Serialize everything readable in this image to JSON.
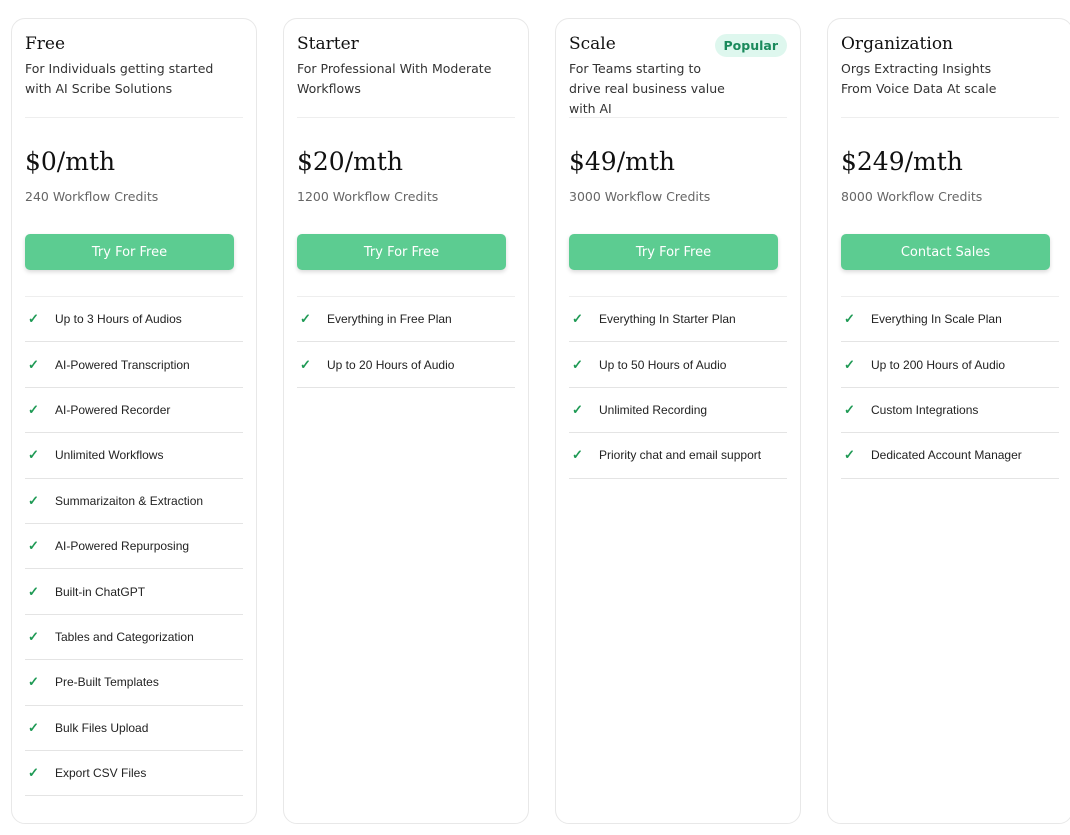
{
  "plans": [
    {
      "title": "Free",
      "badge": null,
      "description": "For Individuals getting started with AI Scribe Solutions",
      "price": "$0/mth",
      "credits": "240 Workflow Credits",
      "cta": "Try For Free",
      "features": [
        "Up to 3 Hours of Audios",
        "AI-Powered Transcription",
        "AI-Powered Recorder",
        "Unlimited Workflows",
        "Summarizaiton & Extraction",
        "AI-Powered Repurposing",
        "Built-in ChatGPT",
        "Tables and Categorization",
        "Pre-Built Templates",
        "Bulk Files Upload",
        "Export CSV Files"
      ]
    },
    {
      "title": "Starter",
      "badge": null,
      "description": "For Professional With Moderate Workflows",
      "price": "$20/mth",
      "credits": "1200 Workflow Credits",
      "cta": "Try For Free",
      "features": [
        "Everything in Free Plan",
        "Up to 20 Hours of Audio"
      ]
    },
    {
      "title": "Scale",
      "badge": "Popular",
      "description": "For Teams starting to drive real business value with AI",
      "price": "$49/mth",
      "credits": "3000 Workflow Credits",
      "cta": "Try For Free",
      "features": [
        "Everything In Starter Plan",
        "Up to 50 Hours of Audio",
        "Unlimited Recording",
        "Priority chat and email support"
      ]
    },
    {
      "title": "Organization",
      "badge": null,
      "description": "Orgs Extracting Insights From Voice Data At scale",
      "price": "$249/mth",
      "credits": "8000 Workflow Credits",
      "cta": "Contact Sales",
      "features": [
        "Everything In Scale Plan",
        "Up to 200 Hours of Audio",
        "Custom Integrations",
        "Dedicated Account Manager"
      ]
    }
  ],
  "colors": {
    "accent": "#5ccc91",
    "check": "#1f9a55",
    "badge_bg": "#def7ee",
    "badge_text": "#1a8a5c"
  },
  "icons": {
    "feature": "check-icon"
  }
}
